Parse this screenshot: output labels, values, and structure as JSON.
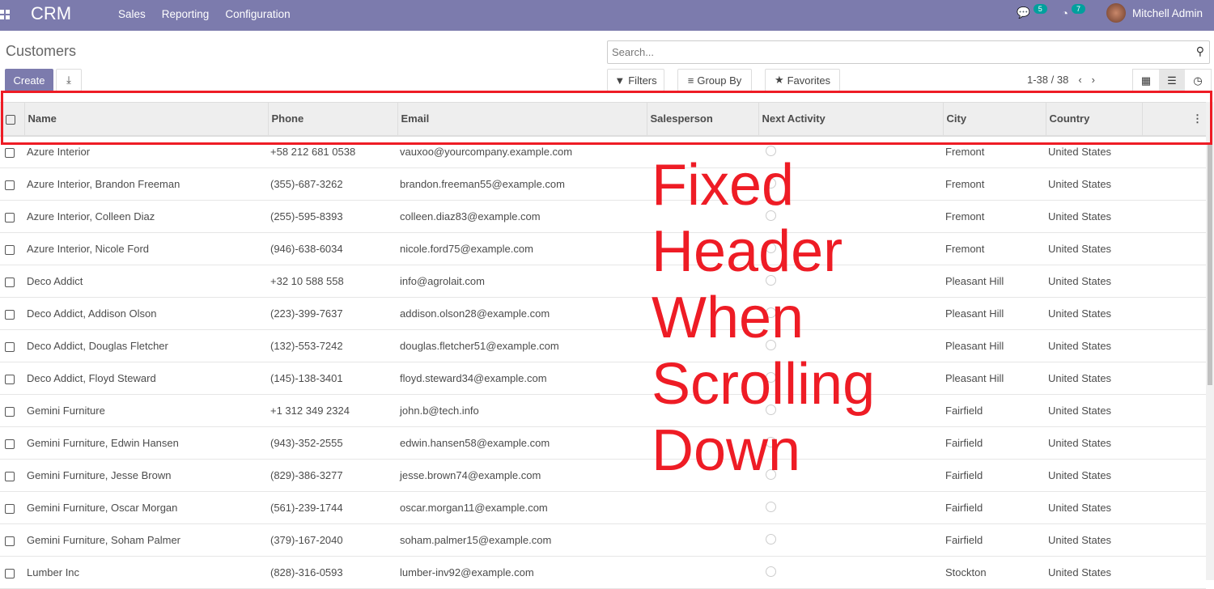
{
  "nav": {
    "brand": "CRM",
    "menu": [
      "Sales",
      "Reporting",
      "Configuration"
    ],
    "messages_count": "5",
    "activities_count": "7",
    "user": "Mitchell Admin"
  },
  "page": {
    "title": "Customers",
    "create": "Create",
    "search_placeholder": "Search...",
    "filters": "Filters",
    "group_by": "Group By",
    "favorites": "Favorites",
    "pager": "1-38 / 38"
  },
  "columns": [
    "Name",
    "Phone",
    "Email",
    "Salesperson",
    "Next Activity",
    "City",
    "Country"
  ],
  "rows": [
    [
      "Azure Interior",
      "+58 212 681 0538",
      "vauxoo@yourcompany.example.com",
      "",
      "",
      "Fremont",
      "United States"
    ],
    [
      "Azure Interior, Brandon Freeman",
      "(355)-687-3262",
      "brandon.freeman55@example.com",
      "",
      "",
      "Fremont",
      "United States"
    ],
    [
      "Azure Interior, Colleen Diaz",
      "(255)-595-8393",
      "colleen.diaz83@example.com",
      "",
      "",
      "Fremont",
      "United States"
    ],
    [
      "Azure Interior, Nicole Ford",
      "(946)-638-6034",
      "nicole.ford75@example.com",
      "",
      "",
      "Fremont",
      "United States"
    ],
    [
      "Deco Addict",
      "+32 10 588 558",
      "info@agrolait.com",
      "",
      "",
      "Pleasant Hill",
      "United States"
    ],
    [
      "Deco Addict, Addison Olson",
      "(223)-399-7637",
      "addison.olson28@example.com",
      "",
      "",
      "Pleasant Hill",
      "United States"
    ],
    [
      "Deco Addict, Douglas Fletcher",
      "(132)-553-7242",
      "douglas.fletcher51@example.com",
      "",
      "",
      "Pleasant Hill",
      "United States"
    ],
    [
      "Deco Addict, Floyd Steward",
      "(145)-138-3401",
      "floyd.steward34@example.com",
      "",
      "",
      "Pleasant Hill",
      "United States"
    ],
    [
      "Gemini Furniture",
      "+1 312 349 2324",
      "john.b@tech.info",
      "",
      "",
      "Fairfield",
      "United States"
    ],
    [
      "Gemini Furniture, Edwin Hansen",
      "(943)-352-2555",
      "edwin.hansen58@example.com",
      "",
      "",
      "Fairfield",
      "United States"
    ],
    [
      "Gemini Furniture, Jesse Brown",
      "(829)-386-3277",
      "jesse.brown74@example.com",
      "",
      "",
      "Fairfield",
      "United States"
    ],
    [
      "Gemini Furniture, Oscar Morgan",
      "(561)-239-1744",
      "oscar.morgan11@example.com",
      "",
      "",
      "Fairfield",
      "United States"
    ],
    [
      "Gemini Furniture, Soham Palmer",
      "(379)-167-2040",
      "soham.palmer15@example.com",
      "",
      "",
      "Fairfield",
      "United States"
    ],
    [
      "Lumber Inc",
      "(828)-316-0593",
      "lumber-inv92@example.com",
      "",
      "",
      "Stockton",
      "United States"
    ]
  ],
  "annotation": {
    "lines": [
      "Fixed Header",
      "When Scrolling",
      "Down"
    ],
    "color": "#ee1c25"
  }
}
